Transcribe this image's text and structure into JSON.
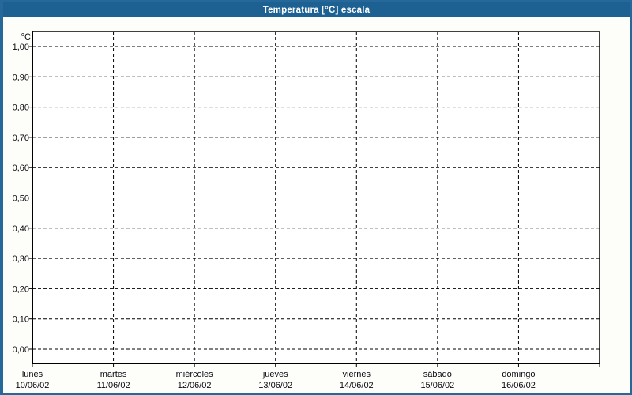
{
  "window": {
    "title": "Temperatura [°C] escala"
  },
  "colors": {
    "titlebar_bg": "#1d6092",
    "frame": "#27689a",
    "title_text": "#ffffff",
    "page_bg": "#fdfdfa",
    "plot_bg": "#ffffff",
    "grid": "#000000",
    "axis": "#000000",
    "text": "#0a0a10"
  },
  "chart_data": {
    "type": "line",
    "title": "Temperatura [°C] escala",
    "ylabel": "°C",
    "xlabel": "",
    "ylim": [
      0.0,
      1.0
    ],
    "y_tick_step": 0.1,
    "y_tick_labels": [
      "1,00",
      "0,90",
      "0,80",
      "0,70",
      "0,60",
      "0,50",
      "0,40",
      "0,30",
      "0,20",
      "0,10",
      "0,00"
    ],
    "x_categories": [
      {
        "day": "lunes",
        "date": "10/06/02"
      },
      {
        "day": "martes",
        "date": "11/06/02"
      },
      {
        "day": "miércoles",
        "date": "12/06/02"
      },
      {
        "day": "jueves",
        "date": "13/06/02"
      },
      {
        "day": "viernes",
        "date": "14/06/02"
      },
      {
        "day": "sábado",
        "date": "15/06/02"
      },
      {
        "day": "domingo",
        "date": "16/06/02"
      }
    ],
    "series": [],
    "grid": "dashed",
    "legend": "none"
  }
}
